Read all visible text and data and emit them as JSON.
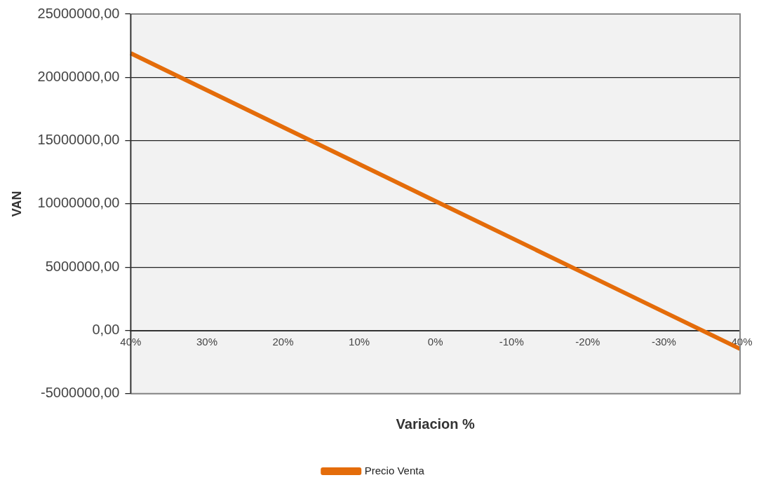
{
  "chart_data": {
    "type": "line",
    "xlabel": "Variacion %",
    "ylabel": "VAN",
    "categories": [
      "40%",
      "30%",
      "20%",
      "10%",
      "0%",
      "-10%",
      "-20%",
      "-30%",
      "-40%"
    ],
    "series": [
      {
        "name": "Precio Venta",
        "color": "#e46c0a",
        "values": [
          21900000,
          18980000,
          16060000,
          13140000,
          10220000,
          7300000,
          4380000,
          1460000,
          -1460000
        ]
      }
    ],
    "ylim": [
      -5000000,
      25000000
    ],
    "yticks": [
      {
        "value": -5000000,
        "label": "-5000000,00"
      },
      {
        "value": 0,
        "label": "0,00"
      },
      {
        "value": 5000000,
        "label": "5000000,00"
      },
      {
        "value": 10000000,
        "label": "10000000,00"
      },
      {
        "value": 15000000,
        "label": "15000000,00"
      },
      {
        "value": 20000000,
        "label": "20000000,00"
      },
      {
        "value": 25000000,
        "label": "25000000,00"
      }
    ],
    "grid": "y",
    "legend": "bottom",
    "marker": "none",
    "line_style": "solid"
  }
}
